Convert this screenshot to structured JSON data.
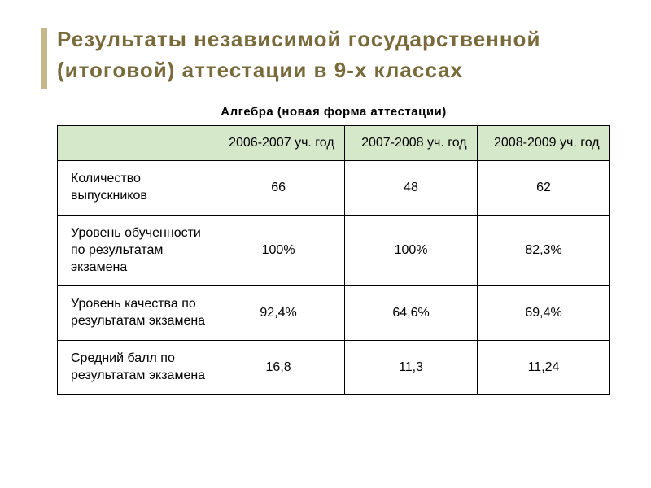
{
  "title_line1": "Результаты   независимой  государственной",
  "title_line2": "(итоговой)  аттестации в 9-х   классах",
  "subtitle": "Алгебра  (новая форма аттестации)",
  "colors": {
    "accent": "#c5b88a",
    "title_text": "#7a6a3a",
    "header_bg": "#d5e8c9",
    "border": "#000000",
    "text": "#000000",
    "page_bg": "#ffffff"
  },
  "table": {
    "columns": [
      "",
      "2006-2007 уч. год",
      "2007-2008 уч. год",
      "2008-2009 уч. год"
    ],
    "rows": [
      {
        "label": "Количество выпускников",
        "values": [
          "66",
          "48",
          "62"
        ]
      },
      {
        "label": "Уровень обученности по результатам экзамена",
        "values": [
          "100%",
          "100%",
          "82,3%"
        ]
      },
      {
        "label": "Уровень качества  по результатам экзамена",
        "values": [
          "92,4%",
          "64,6%",
          "69,4%"
        ]
      },
      {
        "label": "Средний  балл по результатам экзамена",
        "values": [
          "16,8",
          "11,3",
          "11,24"
        ]
      }
    ]
  }
}
